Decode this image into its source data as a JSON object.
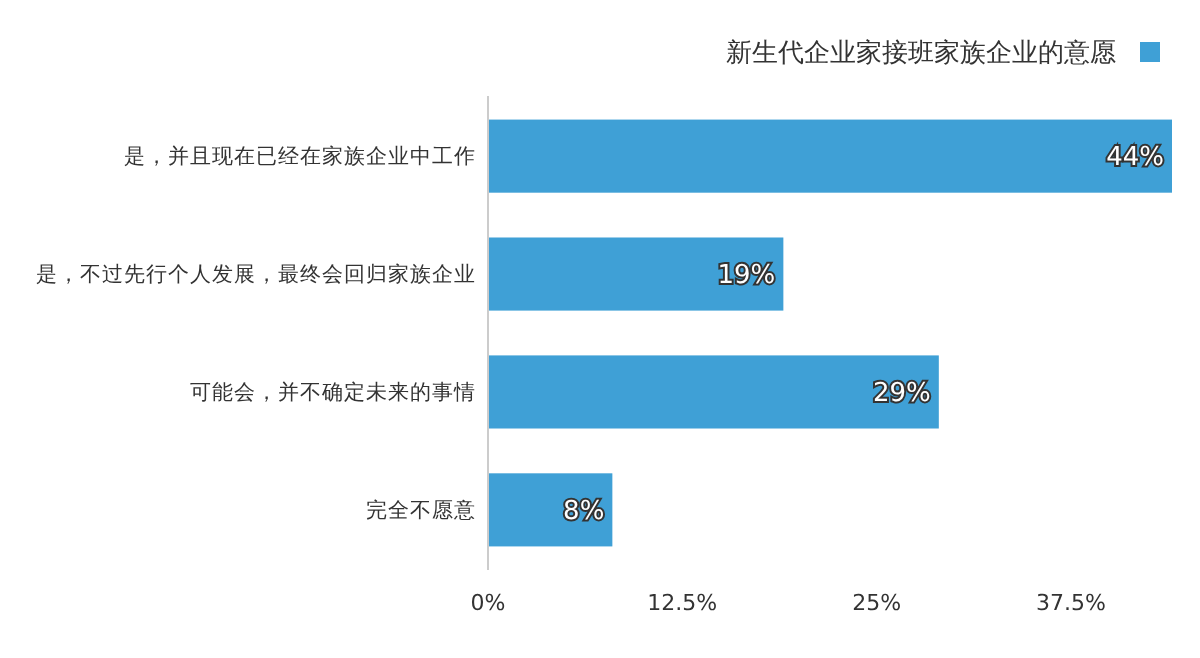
{
  "chart_data": {
    "type": "bar",
    "orientation": "horizontal",
    "categories": [
      "是，并且现在已经在家族企业中工作",
      "是，不过先行个人发展，最终会回归家族企业",
      "可能会，并不确定未来的事情",
      "完全不愿意"
    ],
    "series": [
      {
        "name": "新生代企业家接班家族企业的意愿",
        "color": "#3fa0d6",
        "values": [
          44,
          19,
          29,
          8
        ]
      }
    ],
    "xlim": [
      0,
      44
    ],
    "xticks": [
      {
        "value": 0,
        "label": "0%"
      },
      {
        "value": 12.5,
        "label": "12.5%"
      },
      {
        "value": 25,
        "label": "25%"
      },
      {
        "value": 37.5,
        "label": "37.5%"
      }
    ],
    "value_labels": [
      "44%",
      "19%",
      "29%",
      "8%"
    ],
    "legend": "top right",
    "grid": false
  }
}
